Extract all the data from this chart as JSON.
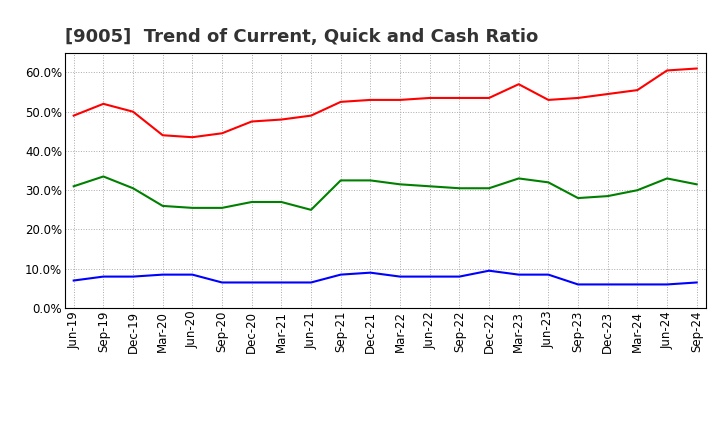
{
  "title": "[9005]  Trend of Current, Quick and Cash Ratio",
  "x_labels": [
    "Jun-19",
    "Sep-19",
    "Dec-19",
    "Mar-20",
    "Jun-20",
    "Sep-20",
    "Dec-20",
    "Mar-21",
    "Jun-21",
    "Sep-21",
    "Dec-21",
    "Mar-22",
    "Jun-22",
    "Sep-22",
    "Dec-22",
    "Mar-23",
    "Jun-23",
    "Sep-23",
    "Dec-23",
    "Mar-24",
    "Jun-24",
    "Sep-24"
  ],
  "current_ratio": [
    49.0,
    52.0,
    50.0,
    44.0,
    43.5,
    44.5,
    47.5,
    48.0,
    49.0,
    52.5,
    53.0,
    53.0,
    53.5,
    53.5,
    53.5,
    57.0,
    53.0,
    53.5,
    54.5,
    55.5,
    60.5,
    61.0
  ],
  "quick_ratio": [
    31.0,
    33.5,
    30.5,
    26.0,
    25.5,
    25.5,
    27.0,
    27.0,
    25.0,
    32.5,
    32.5,
    31.5,
    31.0,
    30.5,
    30.5,
    33.0,
    32.0,
    28.0,
    28.5,
    30.0,
    33.0,
    31.5
  ],
  "cash_ratio": [
    7.0,
    8.0,
    8.0,
    8.5,
    8.5,
    6.5,
    6.5,
    6.5,
    6.5,
    8.5,
    9.0,
    8.0,
    8.0,
    8.0,
    9.5,
    8.5,
    8.5,
    6.0,
    6.0,
    6.0,
    6.0,
    6.5
  ],
  "current_color": "#ff0000",
  "quick_color": "#008000",
  "cash_color": "#0000ff",
  "ylim": [
    0,
    65
  ],
  "yticks": [
    0.0,
    10.0,
    20.0,
    30.0,
    40.0,
    50.0,
    60.0
  ],
  "background_color": "#ffffff",
  "grid_color": "#aaaaaa",
  "title_fontsize": 13,
  "legend_fontsize": 10,
  "axis_fontsize": 8.5
}
